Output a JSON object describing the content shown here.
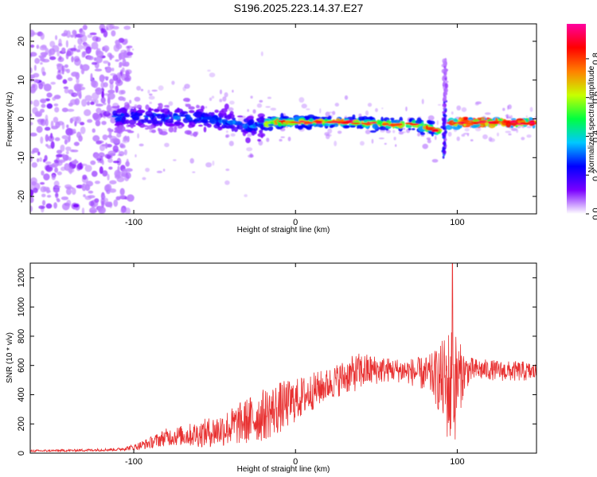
{
  "title": "S196.2025.223.14.37.E27",
  "chart_data": [
    {
      "type": "heatmap",
      "title": "S196.2025.223.14.37.E27",
      "xlabel": "Height of straight line (km)",
      "ylabel": "Frequency (Hz)",
      "xlim": [
        -164,
        149
      ],
      "ylim": [
        -24.5,
        24.5
      ],
      "x_ticks": [
        -100,
        0,
        100
      ],
      "x_tick_labels": [
        "-100",
        "0",
        "100"
      ],
      "y_ticks": [
        -20,
        -10,
        0,
        10,
        20
      ],
      "y_tick_labels": [
        "-20",
        "-10",
        "0",
        "10",
        "20"
      ],
      "colorbar": {
        "label": "Normalized spectral amplitude",
        "range": [
          0,
          0.98
        ],
        "ticks": [
          0,
          0.2,
          0.4,
          0.6,
          0.8
        ],
        "tick_labels": [
          "0.0",
          "0.2",
          "0.4",
          "0.6",
          "0.8"
        ],
        "colors": [
          "#ffffff",
          "#7a00ff",
          "#0000ff",
          "#00c8ff",
          "#00ff40",
          "#c8ff00",
          "#ff8000",
          "#ff0000",
          "#ff00a0"
        ]
      },
      "features": {
        "main_band_frequency_hz": [
          {
            "x": -164,
            "y": 0.5
          },
          {
            "x": -110,
            "y": 0.5
          },
          {
            "x": -60,
            "y": 0.3
          },
          {
            "x": -25,
            "y": -2.0
          },
          {
            "x": -15,
            "y": -0.8
          },
          {
            "x": 0,
            "y": -0.8
          },
          {
            "x": 30,
            "y": -0.8
          },
          {
            "x": 60,
            "y": -1.5
          },
          {
            "x": 75,
            "y": -1.5
          },
          {
            "x": 88,
            "y": -3.0
          },
          {
            "x": 96,
            "y": -1.0
          },
          {
            "x": 149,
            "y": -1.0
          }
        ],
        "vertical_feature_x_km": 92
      }
    },
    {
      "type": "line",
      "xlabel": "Height of straight line (km)",
      "ylabel": "SNR (10 * v/v)",
      "xlim": [
        -164,
        149
      ],
      "ylim": [
        0,
        1300
      ],
      "x_ticks": [
        -100,
        0,
        100
      ],
      "x_tick_labels": [
        "-100",
        "0",
        "100"
      ],
      "y_ticks": [
        0,
        200,
        400,
        600,
        800,
        1000,
        1200
      ],
      "y_tick_labels": [
        "0",
        "200",
        "400",
        "600",
        "800",
        "1000",
        "1200"
      ],
      "series": [
        {
          "name": "SNR",
          "color": "#e83030",
          "envelope": {
            "x": [
              -164,
              -140,
              -110,
              -100,
              -90,
              -80,
              -70,
              -60,
              -50,
              -40,
              -30,
              -20,
              -10,
              0,
              10,
              20,
              30,
              40,
              50,
              60,
              70,
              80,
              85,
              90,
              95,
              97,
              100,
              105,
              110,
              120,
              130,
              140,
              149
            ],
            "center": [
              15,
              18,
              25,
              40,
              70,
              110,
              120,
              130,
              150,
              180,
              220,
              260,
              310,
              360,
              420,
              470,
              520,
              560,
              570,
              570,
              560,
              540,
              530,
              500,
              450,
              420,
              500,
              560,
              570,
              570,
              560,
              560,
              555
            ],
            "amplitude": [
              8,
              8,
              10,
              20,
              40,
              60,
              70,
              90,
              110,
              130,
              160,
              180,
              180,
              150,
              130,
              110,
              120,
              130,
              100,
              80,
              90,
              120,
              160,
              260,
              420,
              500,
              300,
              120,
              80,
              70,
              70,
              70,
              60
            ]
          },
          "peak": {
            "x": 97,
            "y": 1300
          }
        }
      ]
    }
  ]
}
